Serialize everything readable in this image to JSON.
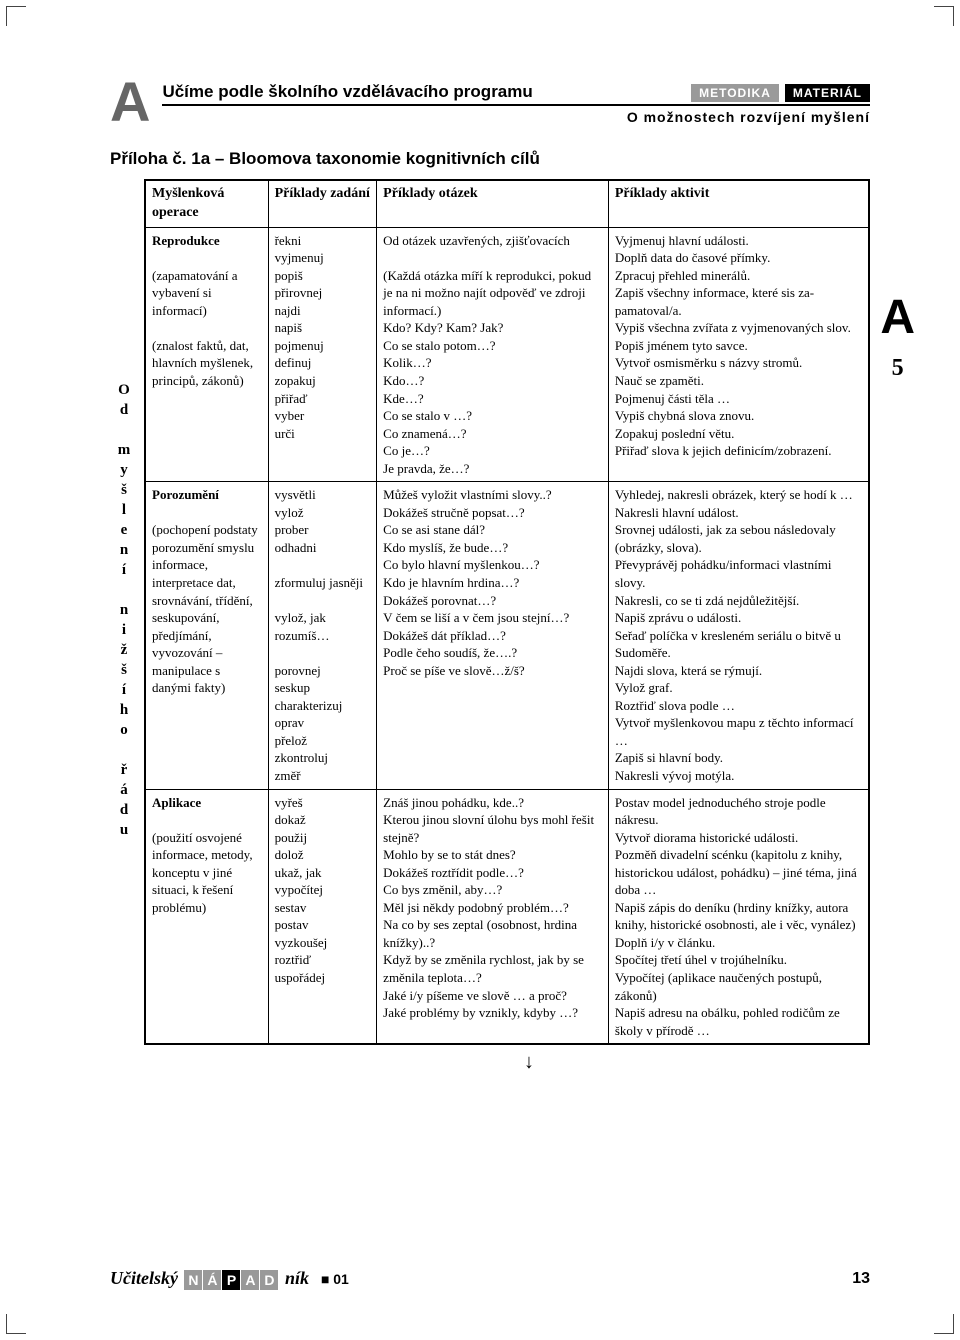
{
  "header": {
    "title": "Učíme podle školního vzdělávacího programu",
    "tag1": "METODIKA",
    "tag2": "MATERIÁL",
    "subtitle": "O možnostech rozvíjení myšlení"
  },
  "appendix_title": "Příloha č. 1a – Bloomova taxonomie kognitivních cílů",
  "side_left": "Od myšlení nižšího řádu",
  "side_right_letter": "A",
  "side_right_page": "5",
  "table": {
    "headers": {
      "c1": "Myšlenková operace",
      "c2": "Příklady zadání",
      "c3": "Příklady otázek",
      "c4": "Příklady aktivit"
    },
    "rows": [
      {
        "op_title": "Reprodukce",
        "op_desc": "(zapamatování a vybavení si informací)\n\n(znalost faktů, dat, hlavních myšlenek, principů, zákonů)",
        "zad": "řekni\nvyjmenuj\npopiš\npřirovnej\nnajdi\nnapiš\npojmenuj\ndefinuj\nzopakuj\npřiřaď\nvyber\nurči",
        "ot": "Od otázek uzavřených, zjišťo­vacích\n\n(Každá otázka míří k reprodukci, pokud je na ni možno najít odpo­věď ve zdroji informací.)\nKdo? Kdy? Kam? Jak?\nCo se stalo potom…?\nKolik…?\nKdo…?\nKde…?\nCo se stalo v …?\nCo znamená…?\nCo je…?\nJe pravda, že…?",
        "ak": "Vyjmenuj hlavní události.\nDoplň data do časové přímky.\nZpracuj přehled minerálů.\nZapiš všechny informace, které sis za­pamatoval/a.\nVypiš všechna zvířata z vyjmenovaných slov.\nPopiš jménem tyto savce.\nVytvoř osmisměrku s názvy stromů.\nNauč se zpaměti.\nPojmenuj části těla …\nVypiš chybná slova znovu.\nZopakuj poslední větu.\nPřiřaď slova k jejich definicím/zobra­zení."
      },
      {
        "op_title": "Porozumění",
        "op_desc": "(pochopení podstaty porozumění smyslu informace, interpretace dat, srovnávání, třídění, seskupování, předjímání, vyvozování – manipulace s danými fakty)",
        "zad": "vysvětli\nvylož\nprober\nodhadni\n\nzformuluj jasněji\n\nvylož, jak rozumíš…\n\nporovnej\nseskup\ncharakterizuj\noprav\npřelož\nzkontroluj\nzměř",
        "ot": "Můžeš vyložit vlastními slovy..?\nDokážeš stručně popsat…?\nCo se asi stane dál?\nKdo myslíš, že bude…?\nCo bylo hlavní myšlenkou…?\nKdo je hlavním hrdina…?\nDokážeš porovnat…?\nV čem se liší a v čem jsou stejní…?\nDokážeš dát příklad…?\nPodle čeho soudíš, že….?\nProč se píše ve slově…ž/š?",
        "ak": "Vyhledej, nakresli obrázek, který se hodí k …\nNakresli hlavní událost.\nSrovnej události, jak za sebou následo­valy (obrázky, slova).\nPřevyprávěj pohádku/informaci vlastní­mi slovy.\nNakresli, co se ti zdá nejdůležitější.\nNapiš zprávu o události.\nSeřaď políčka v kresleném seriálu o bitvě u Sudoměře.\nNajdi slova, která se rýmují.\nVylož graf.\nRoztřiď slova podle …\nVytvoř myšlenkovou mapu z těchto informací …\nZapiš si hlavní body.\nNakresli vývoj motýla."
      },
      {
        "op_title": "Aplikace",
        "op_desc": "(použití osvojené informace, metody, konceptu v jiné situaci, k řešení problému)",
        "zad": "vyřeš\ndokaž\npoužij\ndolož\nukaž, jak\nvypočítej\nsestav\npostav\nvyzkoušej\nroztřiď\nuspořádej",
        "ot": "Znáš jinou pohádku, kde..?\nKterou jinou slovní úlohu bys mohl řešit stejně?\nMohlo by se to stát dnes?\nDokážeš roztřídit podle…?\nCo bys změnil, aby…?\nMěl jsi někdy podobný problém…?\nNa co by ses zeptal (osobnost, hrdina knížky)..?\nKdyž by se změnila rychlost, jak by se změnila teplota…?\nJaké i/y píšeme ve slově … a proč?\nJaké problémy by vznikly, kdyby …?",
        "ak": "Postav model jednoduchého stroje podle nákresu.\nVytvoř diorama historické události.\nPozměň divadelní scénku (kapitolu z knihy, historickou událost, pohád­ku) – jiné téma, jiná doba …\nNapiš zápis do deníku (hrdiny knížky, autora knihy, historické osobnosti, ale i věc, vynález)\nDoplň i/y v článku.\nSpočítej třetí úhel v trojúhelníku.\nVypočítej (aplikace naučených postu­pů, zákonů)\nNapiš adresu na obálku, pohled rodi­čům ze školy v přírodě …"
      }
    ]
  },
  "footer": {
    "brand_pre": "Učitelský ",
    "brand_boxes": [
      "N",
      "Á",
      "P",
      "A",
      "D"
    ],
    "brand_post": " ník",
    "sq": "■",
    "issue": "01",
    "page": "13"
  }
}
